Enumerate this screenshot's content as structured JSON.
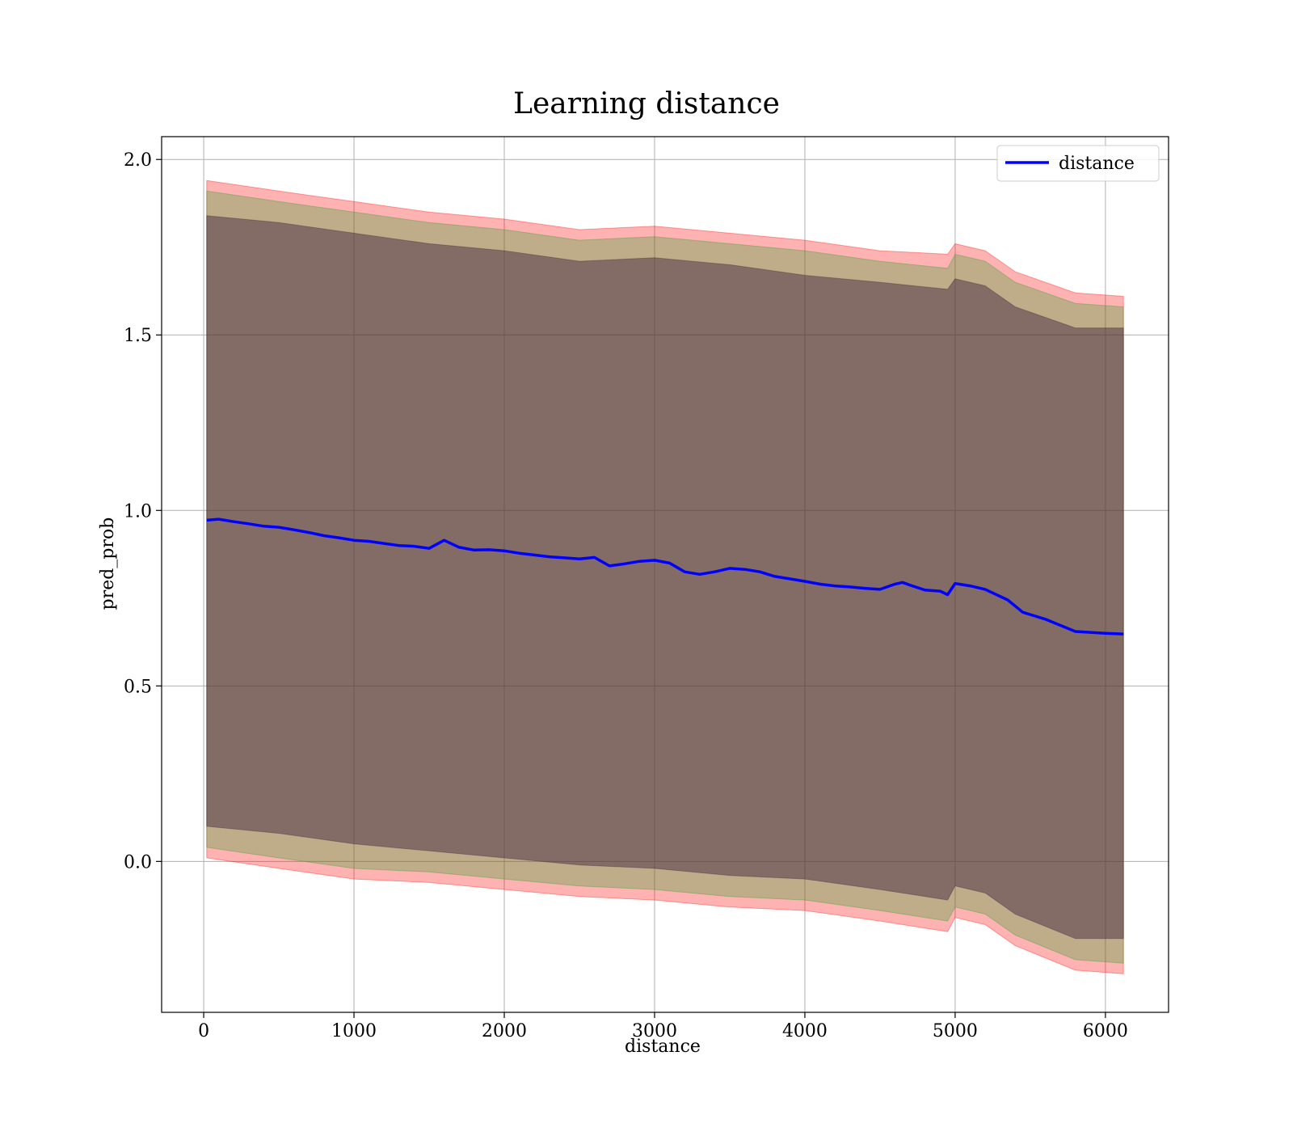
{
  "chart_data": {
    "type": "line",
    "title": "Learning distance",
    "xlabel": "distance",
    "ylabel": "pred_prob",
    "xlim": [
      -280,
      6420
    ],
    "ylim": [
      -0.43,
      2.065
    ],
    "x_ticks": [
      0,
      1000,
      2000,
      3000,
      4000,
      5000,
      6000
    ],
    "y_ticks": [
      0.0,
      0.5,
      1.0,
      1.5,
      2.0
    ],
    "x_tick_labels": [
      "0",
      "1000",
      "2000",
      "3000",
      "4000",
      "5000",
      "6000"
    ],
    "y_tick_labels": [
      "0.0",
      "0.5",
      "1.0",
      "1.5",
      "2.0"
    ],
    "grid": true,
    "legend": {
      "position": "top-right",
      "entries": [
        "distance"
      ]
    },
    "series": [
      {
        "name": "distance",
        "color": "#0000ff",
        "x": [
          20,
          100,
          200,
          300,
          400,
          500,
          600,
          700,
          800,
          900,
          1000,
          1100,
          1200,
          1300,
          1400,
          1500,
          1600,
          1700,
          1800,
          1900,
          2000,
          2100,
          2200,
          2300,
          2400,
          2500,
          2600,
          2700,
          2800,
          2900,
          3000,
          3100,
          3200,
          3300,
          3400,
          3500,
          3600,
          3700,
          3800,
          3900,
          4000,
          4100,
          4200,
          4300,
          4400,
          4500,
          4600,
          4650,
          4700,
          4800,
          4900,
          4950,
          5000,
          5100,
          5200,
          5350,
          5450,
          5600,
          5800,
          6000,
          6120
        ],
        "y": [
          0.972,
          0.975,
          0.968,
          0.962,
          0.955,
          0.952,
          0.945,
          0.937,
          0.928,
          0.922,
          0.915,
          0.912,
          0.906,
          0.9,
          0.898,
          0.892,
          0.915,
          0.895,
          0.887,
          0.888,
          0.885,
          0.878,
          0.873,
          0.868,
          0.865,
          0.862,
          0.866,
          0.842,
          0.848,
          0.855,
          0.858,
          0.85,
          0.825,
          0.818,
          0.825,
          0.835,
          0.832,
          0.825,
          0.812,
          0.805,
          0.798,
          0.79,
          0.785,
          0.782,
          0.778,
          0.775,
          0.79,
          0.795,
          0.787,
          0.773,
          0.77,
          0.76,
          0.792,
          0.785,
          0.775,
          0.745,
          0.71,
          0.69,
          0.655,
          0.65,
          0.648
        ]
      }
    ],
    "bands": [
      {
        "name": "outer",
        "color": "#ff0000",
        "opacity": 0.3,
        "x": [
          20,
          500,
          1000,
          1500,
          2000,
          2500,
          3000,
          3500,
          4000,
          4500,
          4950,
          5000,
          5200,
          5400,
          5800,
          6120
        ],
        "upper": [
          1.94,
          1.91,
          1.88,
          1.85,
          1.83,
          1.8,
          1.81,
          1.79,
          1.77,
          1.74,
          1.73,
          1.76,
          1.74,
          1.68,
          1.62,
          1.61
        ],
        "lower": [
          0.01,
          -0.02,
          -0.05,
          -0.06,
          -0.08,
          -0.1,
          -0.11,
          -0.13,
          -0.14,
          -0.17,
          -0.2,
          -0.16,
          -0.18,
          -0.24,
          -0.31,
          -0.32
        ]
      },
      {
        "name": "middle",
        "color": "#2ca02c",
        "opacity": 0.3,
        "x": [
          20,
          500,
          1000,
          1500,
          2000,
          2500,
          3000,
          3500,
          4000,
          4500,
          4950,
          5000,
          5200,
          5400,
          5800,
          6120
        ],
        "upper": [
          1.91,
          1.88,
          1.85,
          1.82,
          1.8,
          1.77,
          1.78,
          1.76,
          1.74,
          1.71,
          1.69,
          1.73,
          1.71,
          1.65,
          1.59,
          1.58
        ],
        "lower": [
          0.04,
          0.01,
          -0.02,
          -0.03,
          -0.05,
          -0.07,
          -0.08,
          -0.1,
          -0.11,
          -0.14,
          -0.17,
          -0.13,
          -0.15,
          -0.21,
          -0.28,
          -0.29
        ]
      },
      {
        "name": "inner",
        "color": "#3b1f3b",
        "opacity": 0.45,
        "x": [
          20,
          500,
          1000,
          1500,
          2000,
          2500,
          3000,
          3500,
          4000,
          4500,
          4950,
          5000,
          5200,
          5400,
          5800,
          6120
        ],
        "upper": [
          1.84,
          1.82,
          1.79,
          1.76,
          1.74,
          1.71,
          1.72,
          1.7,
          1.67,
          1.65,
          1.63,
          1.66,
          1.64,
          1.58,
          1.52,
          1.52
        ],
        "lower": [
          0.1,
          0.08,
          0.05,
          0.03,
          0.01,
          -0.01,
          -0.02,
          -0.04,
          -0.05,
          -0.08,
          -0.11,
          -0.07,
          -0.09,
          -0.15,
          -0.22,
          -0.22
        ]
      }
    ]
  }
}
